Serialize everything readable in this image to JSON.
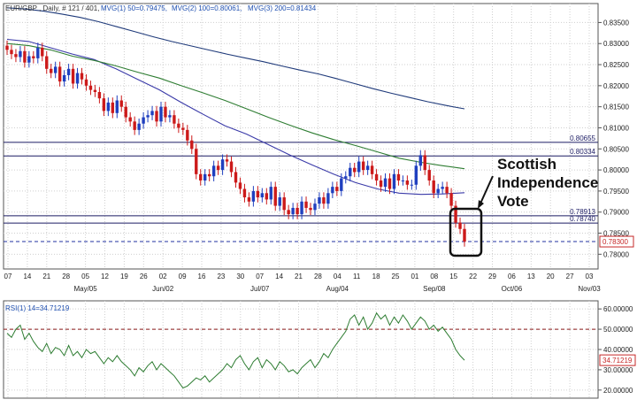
{
  "colors": {
    "bg": "#ffffff",
    "grid": "#cfcfcf",
    "candle_up": "#1f3fbf",
    "candle_down": "#cc1a1a",
    "mvg1": "#3a3aa8",
    "mvg2": "#2e7d32",
    "mvg3": "#1f3a7a",
    "hline": "#1c1c64",
    "current": "#c62828",
    "rsi": "#2e7d32",
    "legend_text": "#2050b0"
  },
  "header": {
    "symbol": "EUR/GBP , Daily, # 121 / 401,",
    "mvg1": "MVG(1) 50=0.79475,",
    "mvg2": "MVG(2) 100=0.80061,",
    "mvg3": "MVG(3) 200=0.81434"
  },
  "annotation": {
    "line1": "Scottish",
    "line2": "Independence",
    "line3": "Vote"
  },
  "chart_data": [
    {
      "type": "line",
      "subtype": "candlestick",
      "instrument": "EUR/GBP",
      "timeframe": "Daily",
      "ylim": [
        0.7765,
        0.8395
      ],
      "y_ticks": [
        0.78,
        0.785,
        0.79,
        0.795,
        0.8,
        0.805,
        0.81,
        0.815,
        0.82,
        0.825,
        0.83,
        0.835
      ],
      "y_tick_labels": [
        "0.78000",
        "0.78500",
        "0.79000",
        "0.79500",
        "0.80000",
        "0.80500",
        "0.81000",
        "0.81500",
        "0.82000",
        "0.82500",
        "0.83000",
        "0.83500"
      ],
      "x_ticks": [
        "07",
        "14",
        "21",
        "28",
        "05",
        "12",
        "19",
        "26",
        "02",
        "09",
        "16",
        "23",
        "30",
        "07",
        "14",
        "21",
        "28",
        "04",
        "11",
        "18",
        "25",
        "01",
        "08",
        "15",
        "22",
        "29",
        "06",
        "13",
        "20",
        "27",
        "03"
      ],
      "month_labels": [
        {
          "label": "May/05",
          "tick": 4
        },
        {
          "label": "Jun/02",
          "tick": 8
        },
        {
          "label": "Jul/07",
          "tick": 13
        },
        {
          "label": "Aug/04",
          "tick": 17
        },
        {
          "label": "Sep/08",
          "tick": 22
        },
        {
          "label": "Oct/06",
          "tick": 26
        },
        {
          "label": "Nov/03",
          "tick": 30
        }
      ],
      "horizontal_levels": [
        {
          "value": 0.80655,
          "label": "0.80655"
        },
        {
          "value": 0.80334,
          "label": "0.80334"
        },
        {
          "value": 0.78913,
          "label": "0.78913"
        },
        {
          "value": 0.7874,
          "label": "0.78740"
        }
      ],
      "current_price": {
        "value": 0.783,
        "label": "0.78300"
      },
      "candles_close": [
        0.8285,
        0.8275,
        0.8268,
        0.8282,
        0.8255,
        0.827,
        0.8265,
        0.829,
        0.827,
        0.824,
        0.823,
        0.8245,
        0.821,
        0.8225,
        0.824,
        0.8205,
        0.823,
        0.8215,
        0.82,
        0.819,
        0.8185,
        0.817,
        0.814,
        0.816,
        0.8135,
        0.8165,
        0.815,
        0.8125,
        0.8115,
        0.8095,
        0.811,
        0.8125,
        0.813,
        0.814,
        0.8115,
        0.815,
        0.8125,
        0.813,
        0.811,
        0.81,
        0.8095,
        0.807,
        0.805,
        0.799,
        0.7975,
        0.799,
        0.7985,
        0.801,
        0.8,
        0.8025,
        0.802,
        0.7995,
        0.797,
        0.7955,
        0.7935,
        0.7925,
        0.795,
        0.7935,
        0.7945,
        0.793,
        0.796,
        0.7915,
        0.7935,
        0.7905,
        0.7895,
        0.791,
        0.7895,
        0.7925,
        0.791,
        0.7905,
        0.792,
        0.7935,
        0.792,
        0.7945,
        0.796,
        0.795,
        0.798,
        0.7985,
        0.8005,
        0.7995,
        0.802,
        0.8,
        0.801,
        0.799,
        0.7975,
        0.796,
        0.798,
        0.7955,
        0.799,
        0.7975,
        0.7975,
        0.7965,
        0.7965,
        0.801,
        0.8035,
        0.8,
        0.7975,
        0.7945,
        0.7955,
        0.796,
        0.7945,
        0.7915,
        0.7875,
        0.786,
        0.783
      ],
      "series": [
        {
          "name": "MVG(1) 50",
          "values": [
            0.831,
            0.8305,
            0.829,
            0.8275,
            0.8262,
            0.824,
            0.8215,
            0.819,
            0.816,
            0.8132,
            0.8105,
            0.8085,
            0.806,
            0.8035,
            0.8012,
            0.799,
            0.797,
            0.7955,
            0.7945,
            0.7942,
            0.7943,
            0.7946
          ]
        },
        {
          "name": "MVG(2) 100",
          "values": [
            0.83,
            0.8295,
            0.8285,
            0.827,
            0.826,
            0.8247,
            0.8232,
            0.8218,
            0.82,
            0.8183,
            0.8165,
            0.8145,
            0.8125,
            0.8106,
            0.8088,
            0.8072,
            0.8058,
            0.8043,
            0.8028,
            0.8018,
            0.801,
            0.8003
          ]
        },
        {
          "name": "MVG(3) 200",
          "values": [
            0.8385,
            0.8382,
            0.8377,
            0.837,
            0.8362,
            0.8352,
            0.834,
            0.8328,
            0.8316,
            0.8305,
            0.8295,
            0.8285,
            0.8275,
            0.8266,
            0.8257,
            0.8247,
            0.8237,
            0.8228,
            0.8217,
            0.8205,
            0.8193,
            0.8182,
            0.8172,
            0.8162,
            0.8153,
            0.8145
          ]
        }
      ]
    },
    {
      "type": "line",
      "title": "RSI(1) 14=34.71219",
      "ylim": [
        16,
        64
      ],
      "y_ticks": [
        20,
        30,
        40,
        50,
        60
      ],
      "y_tick_labels": [
        "20.00000",
        "30.00000",
        "40.00000",
        "50.00000",
        "60.00000"
      ],
      "reference_levels": [
        50
      ],
      "current_value": {
        "value": 34.71219,
        "label": "34.71219"
      },
      "series": [
        {
          "name": "RSI(1) 14",
          "values": [
            48,
            46,
            50,
            52,
            45,
            48,
            44,
            41,
            39,
            43,
            38,
            41,
            40,
            37,
            42,
            37,
            39,
            36,
            40,
            38,
            39,
            36,
            33,
            36,
            34,
            37,
            34,
            32,
            30,
            27,
            31,
            29,
            32,
            34,
            30,
            33,
            31,
            29,
            27,
            24,
            21,
            22,
            24,
            26,
            25,
            27,
            24,
            26,
            28,
            30,
            33,
            31,
            35,
            37,
            33,
            30,
            34,
            36,
            31,
            35,
            33,
            30,
            34,
            32,
            29,
            30,
            28,
            31,
            33,
            35,
            31,
            34,
            38,
            36,
            40,
            43,
            46,
            49,
            55,
            57,
            52,
            56,
            50,
            53,
            58,
            55,
            57,
            52,
            56,
            53,
            57,
            54,
            50,
            53,
            56,
            54,
            50,
            52,
            49,
            51,
            48,
            45,
            40,
            37,
            34.7
          ]
        }
      ]
    }
  ]
}
